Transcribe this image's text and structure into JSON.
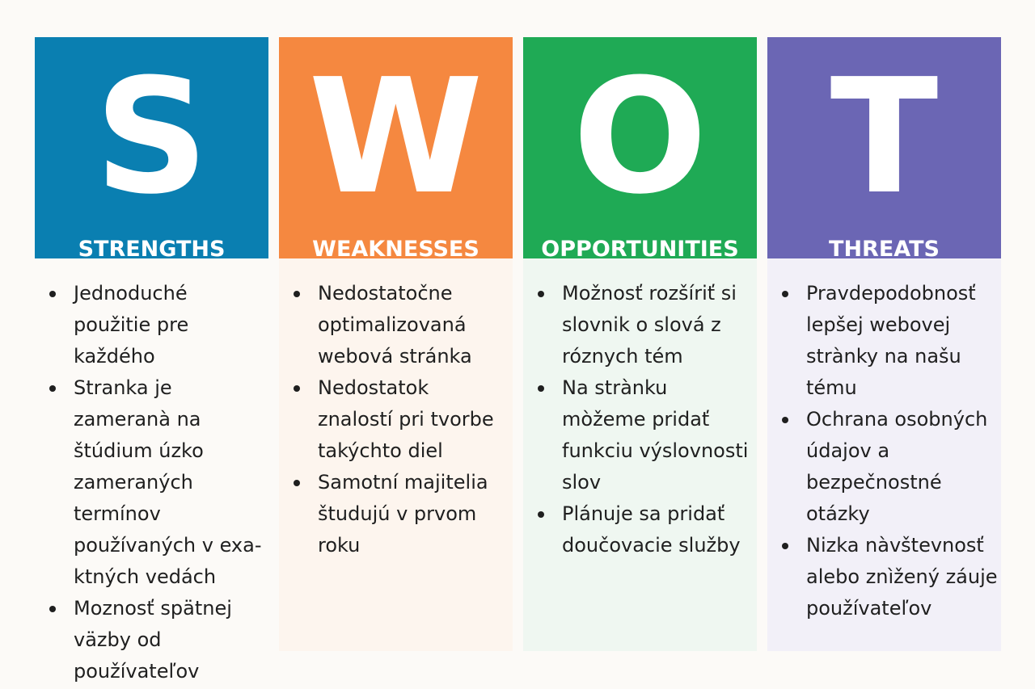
{
  "colors": {
    "strengths": "#0a7fb1",
    "weaknesses": "#f58840",
    "opportunities": "#1faa55",
    "threats": "#6b66b4",
    "page_background": "#fcfaf7",
    "text": "#1f1f1f"
  },
  "quadrants": [
    {
      "letter": "S",
      "title": "STRENGTHS",
      "items": [
        "Jednoduché použitie pre každého",
        "Stranka je zameranà na štúdium úzko zameraných termínov používaných v exa-ktných vedách",
        "Moznosť spätnej väzby od používateľov"
      ]
    },
    {
      "letter": "W",
      "title": "WEAKNESSES",
      "items": [
        "Nedostatočne optimalizovaná webová stránka",
        "Nedostatok znalostí pri tvorbe takýchto diel",
        "Samotní majitelia študujú v prvom roku"
      ]
    },
    {
      "letter": "O",
      "title": "OPPORTUNITIES",
      "items": [
        "Možnosť rozšíriť si slovnik o slová z róznych tém",
        "Na strànku mòžeme pridať funkciu výslovnosti slov",
        "Plánuje sa pridať doučovacie služby"
      ]
    },
    {
      "letter": "T",
      "title": "THREATS",
      "items": [
        "Pravdepodobnosť lepšej webovej strànky na našu tému",
        "Ochrana osobných údajov a bezpečnostné otázky",
        "Nizka nàvštevnosť alebo znìžený záuje používateľov"
      ]
    }
  ]
}
